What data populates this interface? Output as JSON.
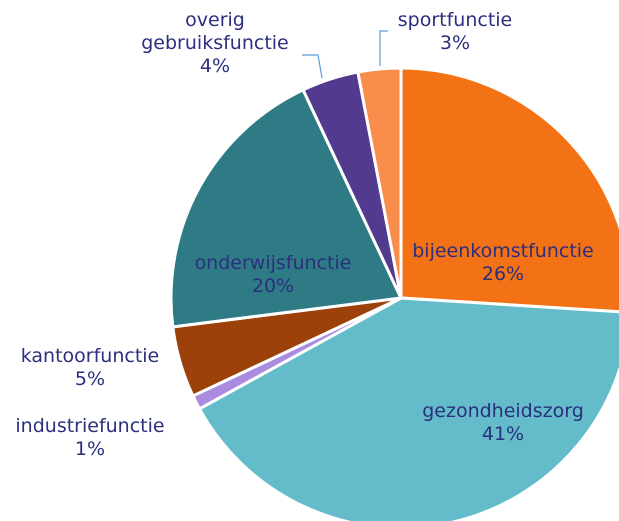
{
  "chart_data": {
    "type": "pie",
    "categories": [
      "bijeenkomstfunctie",
      "gezondheidszorg",
      "industriefunctie",
      "kantoorfunctie",
      "onderwijsfunctie",
      "overig gebruiksfunctie",
      "sportfunctie"
    ],
    "values": [
      26,
      41,
      1,
      5,
      20,
      4,
      3
    ],
    "value_labels": [
      "26%",
      "41%",
      "1%",
      "5%",
      "20%",
      "4%",
      "3%"
    ],
    "colors": [
      "#f47216",
      "#64bccb",
      "#a98ce0",
      "#9c4109",
      "#2e7b86",
      "#523a8f",
      "#f98d4b"
    ]
  }
}
